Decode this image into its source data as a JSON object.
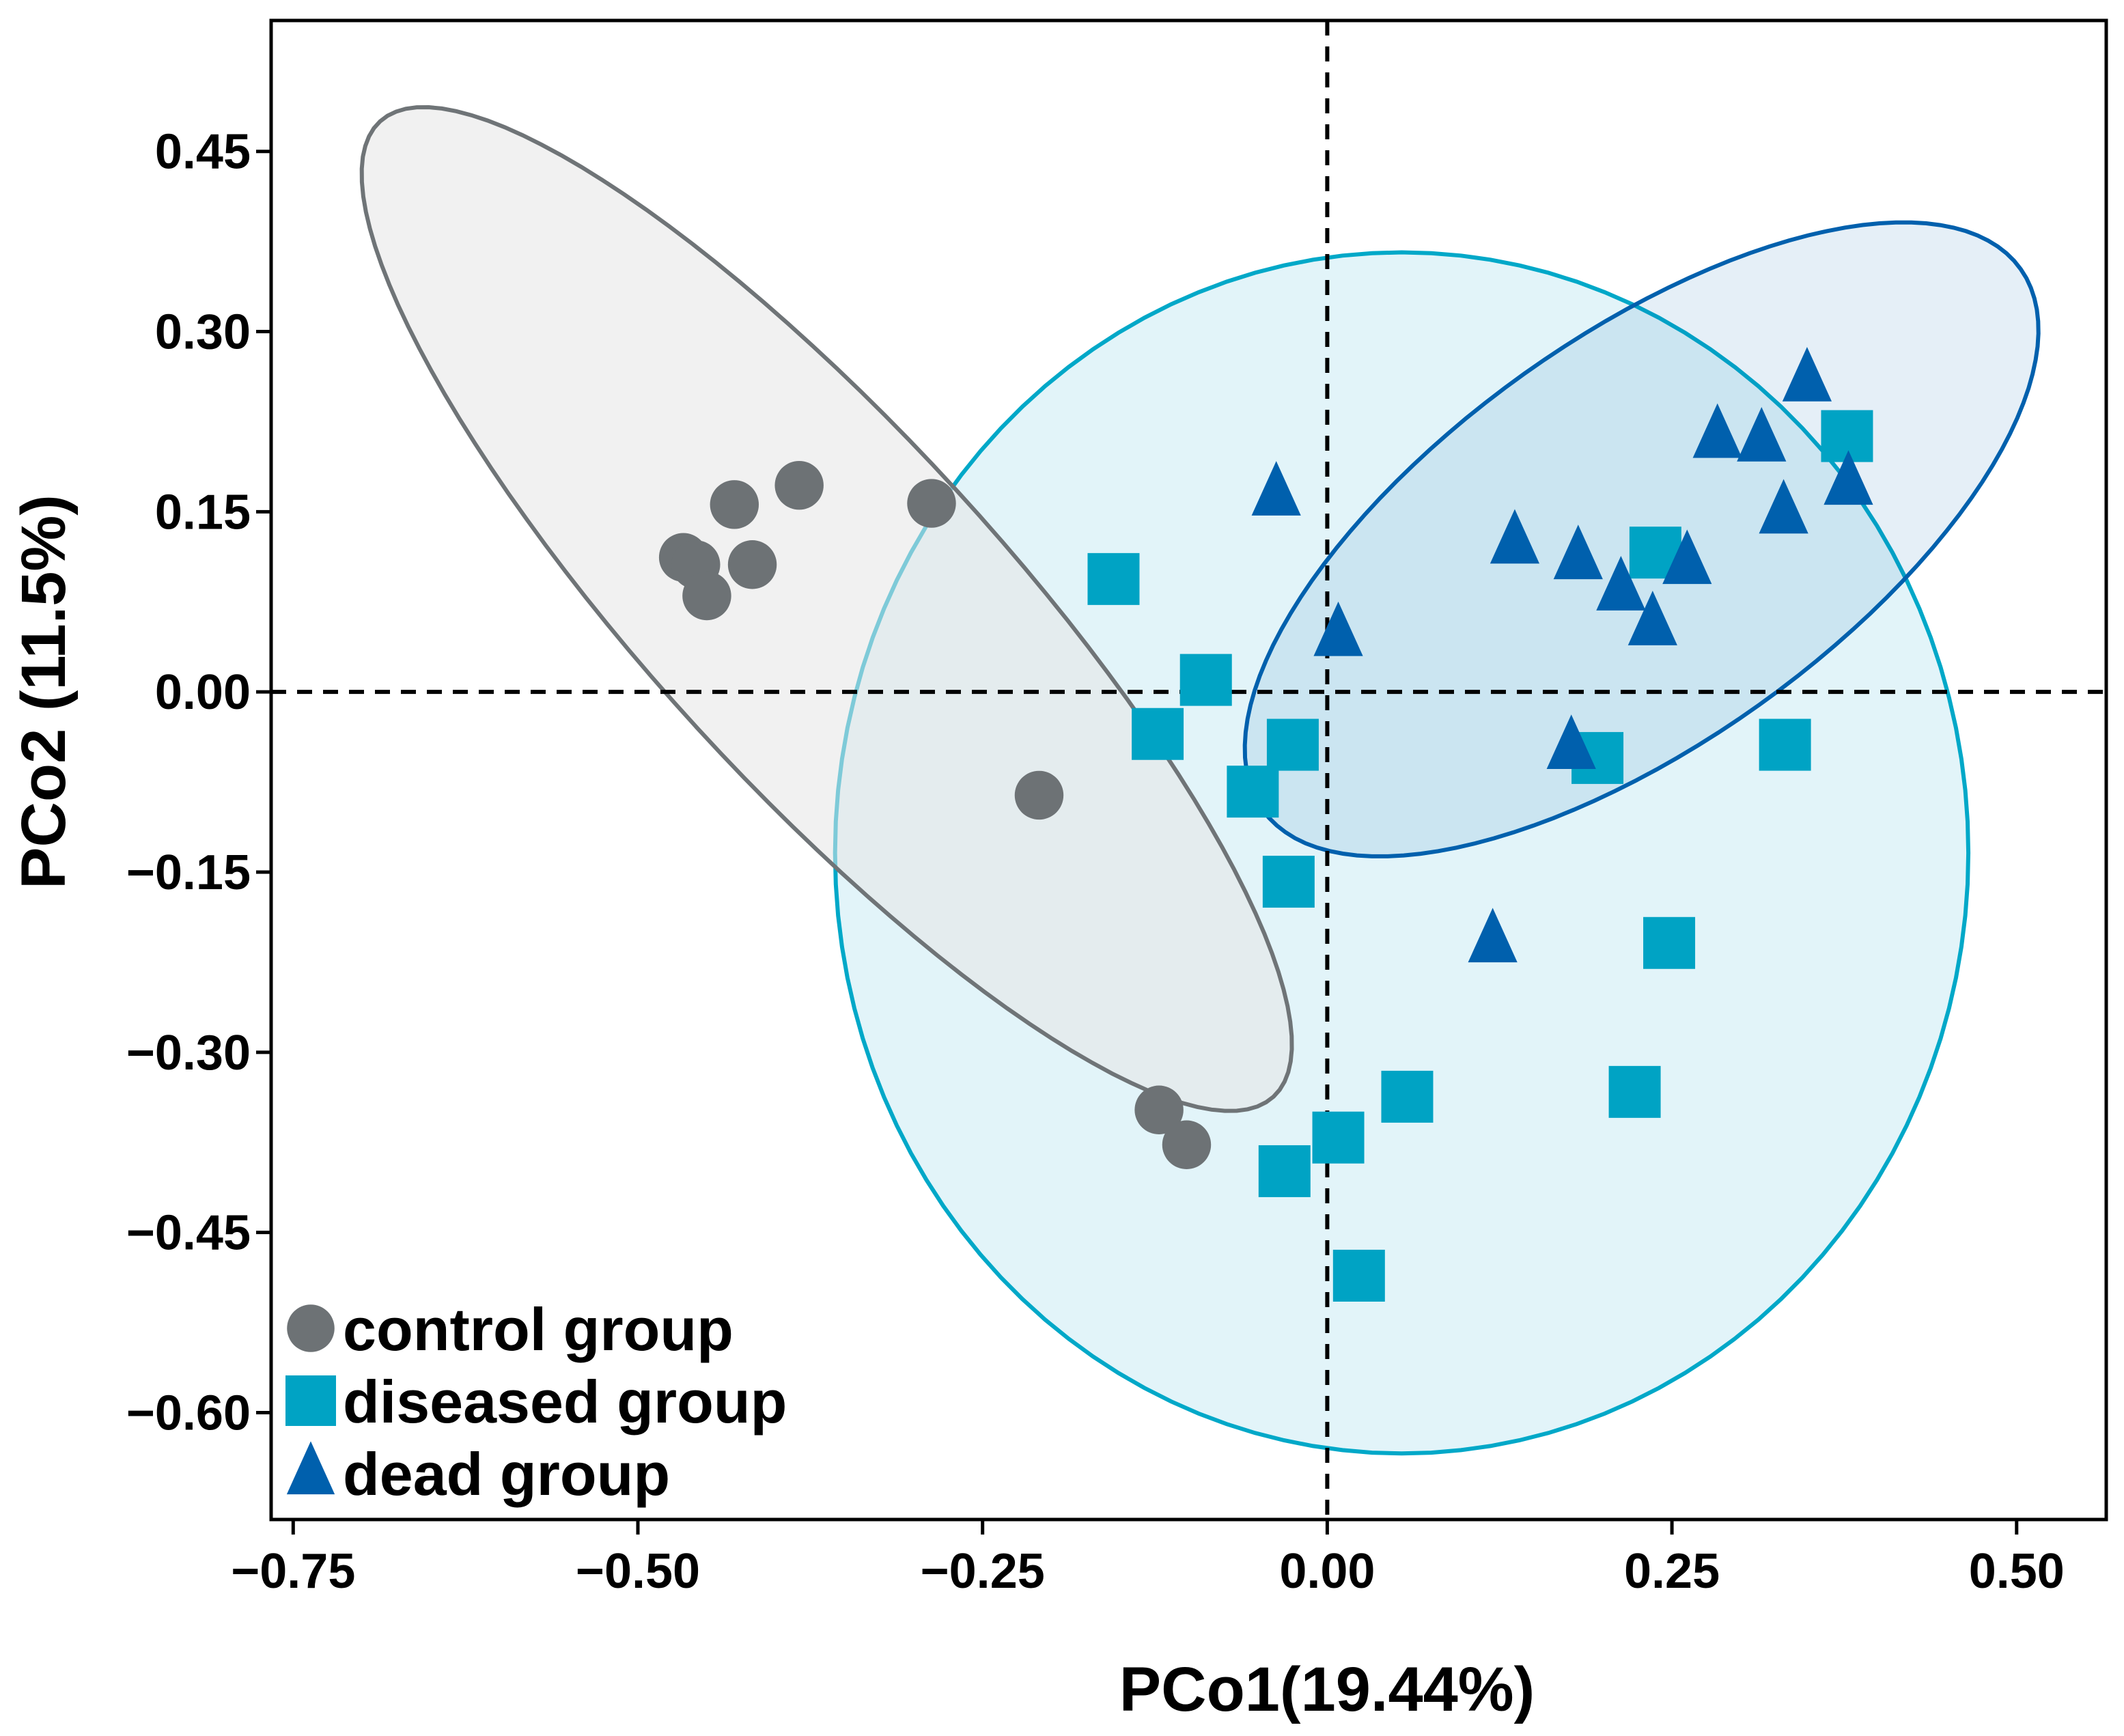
{
  "chart_data": {
    "type": "scatter",
    "title": "",
    "xlabel": "PCo1(19.44%)",
    "ylabel": "PCo2 (11.5%)",
    "xlim": [
      -0.766,
      0.565
    ],
    "ylim": [
      -0.689,
      0.559
    ],
    "x_ticks": [
      -0.75,
      -0.5,
      -0.25,
      0.0,
      0.25,
      0.5
    ],
    "x_tick_labels": [
      "−0.75",
      "−0.50",
      "−0.25",
      "0.00",
      "0.25",
      "0.50"
    ],
    "y_ticks": [
      0.45,
      0.3,
      0.15,
      0.0,
      -0.15,
      -0.3,
      -0.45,
      -0.6
    ],
    "y_tick_labels": [
      "0.45",
      "0.30",
      "0.15",
      "0.00",
      "−0.15",
      "−0.30",
      "−0.45",
      "−0.60"
    ],
    "reference_lines": {
      "x": 0,
      "y": 0,
      "style": "dashed"
    },
    "legend_placement": "bottom-left",
    "grid": false,
    "series": [
      {
        "name": "control group",
        "marker": "circle",
        "color": "#6d7275",
        "ellipse": {
          "center": [
            -0.363,
            0.069
          ],
          "axis_a": [
            0.324,
            -0.406
          ],
          "axis_b": [
            -0.094,
            -0.099
          ],
          "fill": "#e6e6e6",
          "stroke": "#6f7477"
        },
        "points": [
          [
            -0.383,
            0.172
          ],
          [
            -0.43,
            0.156
          ],
          [
            -0.287,
            0.157
          ],
          [
            -0.467,
            0.112
          ],
          [
            -0.458,
            0.106
          ],
          [
            -0.417,
            0.106
          ],
          [
            -0.45,
            0.08
          ],
          [
            -0.209,
            -0.086
          ],
          [
            -0.122,
            -0.348
          ],
          [
            -0.102,
            -0.377
          ]
        ]
      },
      {
        "name": "diseased group",
        "marker": "square",
        "color": "#00a3c4",
        "ellipse": {
          "center": [
            0.054,
            -0.134
          ],
          "axis_a": [
            0.411,
            0.0
          ],
          "axis_b": [
            0.0,
            -0.5
          ],
          "fill": "#e2f4f9",
          "stroke": "#00a8c8"
        },
        "points": [
          [
            -0.155,
            0.094
          ],
          [
            -0.088,
            0.01
          ],
          [
            -0.123,
            -0.035
          ],
          [
            -0.025,
            -0.044
          ],
          [
            -0.054,
            -0.083
          ],
          [
            -0.028,
            -0.158
          ],
          [
            0.196,
            -0.055
          ],
          [
            0.332,
            -0.044
          ],
          [
            0.238,
            0.116
          ],
          [
            0.377,
            0.213
          ],
          [
            0.248,
            -0.209
          ],
          [
            0.223,
            -0.333
          ],
          [
            0.058,
            -0.337
          ],
          [
            0.008,
            -0.371
          ],
          [
            -0.031,
            -0.399
          ],
          [
            0.023,
            -0.486
          ]
        ]
      },
      {
        "name": "dead group",
        "marker": "triangle",
        "color": "#0060ad",
        "ellipse": {
          "center": [
            0.228,
            0.127
          ],
          "axis_a": [
            0.275,
            0.225
          ],
          "axis_b": [
            0.085,
            -0.138
          ],
          "fill": "#0060ad",
          "stroke": "#0060ad"
        },
        "points": [
          [
            -0.037,
            0.165
          ],
          [
            0.136,
            0.125
          ],
          [
            0.182,
            0.112
          ],
          [
            0.213,
            0.086
          ],
          [
            0.236,
            0.057
          ],
          [
            0.261,
            0.108
          ],
          [
            0.283,
            0.213
          ],
          [
            0.315,
            0.21
          ],
          [
            0.348,
            0.26
          ],
          [
            0.331,
            0.15
          ],
          [
            0.378,
            0.174
          ],
          [
            0.008,
            0.048
          ],
          [
            0.177,
            -0.046
          ],
          [
            0.12,
            -0.207
          ]
        ]
      }
    ]
  }
}
